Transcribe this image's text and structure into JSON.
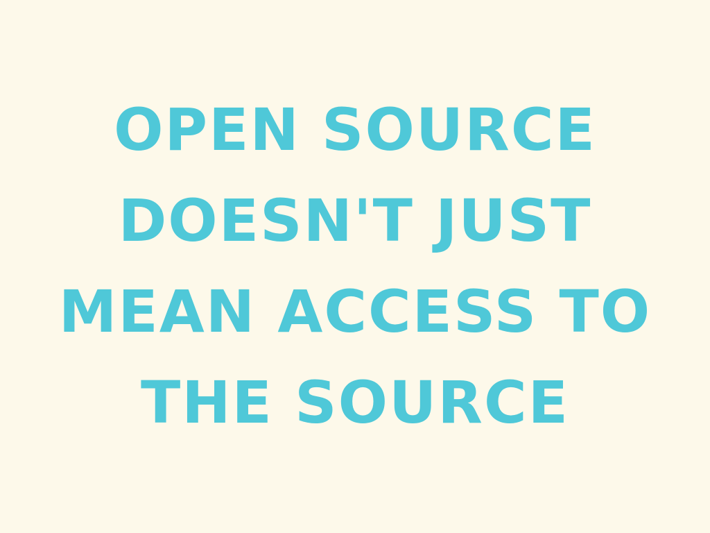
{
  "slide": {
    "background_color": "#fdf9ea",
    "text_color": "#4fc8d8",
    "lines": [
      "OPEN SOURCE",
      "DOESN'T JUST",
      "MEAN ACCESS TO",
      "THE SOURCE"
    ]
  }
}
